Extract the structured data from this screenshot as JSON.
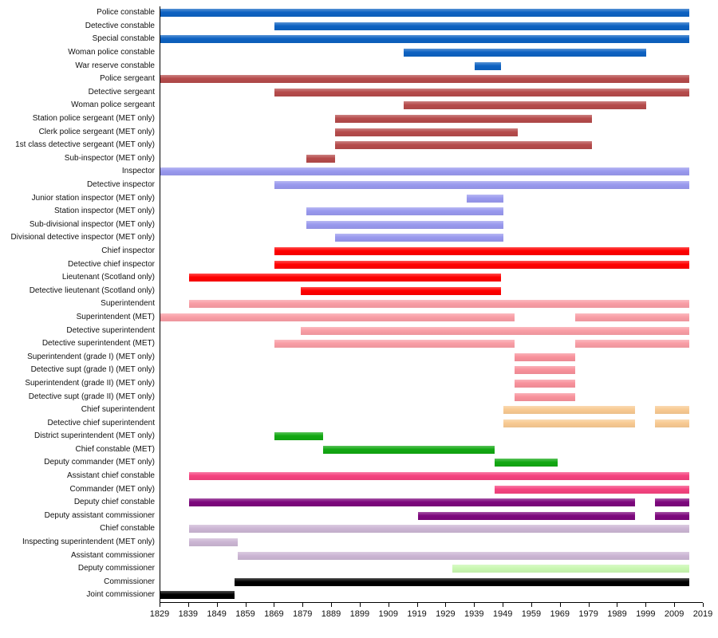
{
  "chart_data": {
    "type": "bar",
    "subtype": "timeline",
    "title": "",
    "xlabel": "",
    "ylabel": "",
    "x_min": 1829,
    "x_max": 2019,
    "grid": false,
    "legend": "none",
    "x_ticks": [
      1829,
      1839,
      1849,
      1859,
      1869,
      1879,
      1889,
      1899,
      1909,
      1919,
      1929,
      1939,
      1949,
      1959,
      1969,
      1979,
      1989,
      1999,
      2009,
      2019
    ],
    "colors": {
      "constable_blue": "#0d62c2",
      "sergeant_darkred": "#b54b4b",
      "inspector_periwinkle": "#9999ee",
      "chief_inspector_red": "#ff0000",
      "superintendent_pink": "#f99da5",
      "grade_salmon": "#f8919b",
      "chief_superintendent_orange": "#f8ca92",
      "met_green": "#12a812",
      "acc_hotpink": "#f5437f",
      "dcc_purple": "#7d077d",
      "cc_thistle": "#ccb6d4",
      "deputy_commissioner_palegreen": "#c9f8b1",
      "commissioner_black": "#000000"
    },
    "rows": [
      {
        "label": "Police constable",
        "color": "#0d62c2",
        "segments": [
          [
            1829,
            2014
          ]
        ]
      },
      {
        "label": "Detective constable",
        "color": "#0d62c2",
        "segments": [
          [
            1869,
            2014
          ]
        ]
      },
      {
        "label": "Special constable",
        "color": "#0d62c2",
        "segments": [
          [
            1829,
            2014
          ]
        ]
      },
      {
        "label": "Woman police constable",
        "color": "#0d62c2",
        "segments": [
          [
            1914,
            1999
          ]
        ]
      },
      {
        "label": "War reserve constable",
        "color": "#0d62c2",
        "segments": [
          [
            1939,
            1948
          ]
        ]
      },
      {
        "label": "Police sergeant",
        "color": "#b54b4b",
        "segments": [
          [
            1829,
            2014
          ]
        ]
      },
      {
        "label": "Detective sergeant",
        "color": "#b54b4b",
        "segments": [
          [
            1869,
            2014
          ]
        ]
      },
      {
        "label": "Woman police sergeant",
        "color": "#b54b4b",
        "segments": [
          [
            1914,
            1999
          ]
        ]
      },
      {
        "label": "Station police sergeant (MET only)",
        "color": "#b54b4b",
        "segments": [
          [
            1890,
            1980
          ]
        ]
      },
      {
        "label": "Clerk police sergeant (MET only)",
        "color": "#b54b4b",
        "segments": [
          [
            1890,
            1954
          ]
        ]
      },
      {
        "label": "1st class detective sergeant (MET only)",
        "color": "#b54b4b",
        "segments": [
          [
            1890,
            1980
          ]
        ]
      },
      {
        "label": "Sub-inspector (MET only)",
        "color": "#b54b4b",
        "segments": [
          [
            1880,
            1890
          ]
        ]
      },
      {
        "label": "Inspector",
        "color": "#9999ee",
        "segments": [
          [
            1829,
            2014
          ]
        ]
      },
      {
        "label": "Detective inspector",
        "color": "#9999ee",
        "segments": [
          [
            1869,
            2014
          ]
        ]
      },
      {
        "label": "Junior station inspector (MET only)",
        "color": "#9999ee",
        "segments": [
          [
            1936,
            1949
          ]
        ]
      },
      {
        "label": "Station inspector (MET only)",
        "color": "#9999ee",
        "segments": [
          [
            1880,
            1949
          ]
        ]
      },
      {
        "label": "Sub-divisional inspector (MET only)",
        "color": "#9999ee",
        "segments": [
          [
            1880,
            1949
          ]
        ]
      },
      {
        "label": "Divisional detective inspector (MET only)",
        "color": "#9999ee",
        "segments": [
          [
            1890,
            1949
          ]
        ]
      },
      {
        "label": "Chief inspector",
        "color": "#ff0000",
        "segments": [
          [
            1869,
            2014
          ]
        ]
      },
      {
        "label": "Detective chief inspector",
        "color": "#ff0000",
        "segments": [
          [
            1869,
            2014
          ]
        ]
      },
      {
        "label": "Lieutenant (Scotland only)",
        "color": "#ff0000",
        "segments": [
          [
            1839,
            1948
          ]
        ]
      },
      {
        "label": "Detective lieutenant (Scotland only)",
        "color": "#ff0000",
        "segments": [
          [
            1878,
            1948
          ]
        ]
      },
      {
        "label": "Superintendent",
        "color": "#f99da5",
        "segments": [
          [
            1839,
            2014
          ]
        ]
      },
      {
        "label": "Superintendent (MET)",
        "color": "#f99da5",
        "segments": [
          [
            1829,
            1953
          ],
          [
            1974,
            2014
          ]
        ]
      },
      {
        "label": "Detective superintendent",
        "color": "#f99da5",
        "segments": [
          [
            1878,
            2014
          ]
        ]
      },
      {
        "label": "Detective superintendent (MET)",
        "color": "#f99da5",
        "segments": [
          [
            1869,
            1953
          ],
          [
            1974,
            2014
          ]
        ]
      },
      {
        "label": "Superintendent (grade I) (MET only)",
        "color": "#f8919b",
        "segments": [
          [
            1953,
            1974
          ]
        ]
      },
      {
        "label": "Detective supt (grade I) (MET only)",
        "color": "#f8919b",
        "segments": [
          [
            1953,
            1974
          ]
        ]
      },
      {
        "label": "Superintendent (grade II) (MET only)",
        "color": "#f8919b",
        "segments": [
          [
            1953,
            1974
          ]
        ]
      },
      {
        "label": "Detective supt (grade II) (MET only)",
        "color": "#f8919b",
        "segments": [
          [
            1953,
            1974
          ]
        ]
      },
      {
        "label": "Chief superintendent",
        "color": "#f8ca92",
        "segments": [
          [
            1949,
            1995
          ],
          [
            2002,
            2014
          ]
        ]
      },
      {
        "label": "Detective chief superintendent",
        "color": "#f8ca92",
        "segments": [
          [
            1949,
            1995
          ],
          [
            2002,
            2014
          ]
        ]
      },
      {
        "label": "District superintendent (MET only)",
        "color": "#12a812",
        "segments": [
          [
            1869,
            1886
          ]
        ]
      },
      {
        "label": "Chief constable (MET)",
        "color": "#12a812",
        "segments": [
          [
            1886,
            1946
          ]
        ]
      },
      {
        "label": "Deputy commander (MET only)",
        "color": "#12a812",
        "segments": [
          [
            1946,
            1968
          ]
        ]
      },
      {
        "label": "Assistant chief constable",
        "color": "#f5437f",
        "segments": [
          [
            1839,
            2014
          ]
        ]
      },
      {
        "label": "Commander (MET only)",
        "color": "#f5437f",
        "segments": [
          [
            1946,
            2014
          ]
        ]
      },
      {
        "label": "Deputy chief constable",
        "color": "#7d077d",
        "segments": [
          [
            1839,
            1995
          ],
          [
            2002,
            2014
          ]
        ]
      },
      {
        "label": "Deputy assistant commissioner",
        "color": "#7d077d",
        "segments": [
          [
            1919,
            1995
          ],
          [
            2002,
            2014
          ]
        ]
      },
      {
        "label": "Chief constable",
        "color": "#ccb6d4",
        "segments": [
          [
            1839,
            2014
          ]
        ]
      },
      {
        "label": "Inspecting superintendent (MET only)",
        "color": "#ccb6d4",
        "segments": [
          [
            1839,
            1856
          ]
        ]
      },
      {
        "label": "Assistant commissioner",
        "color": "#ccb6d4",
        "segments": [
          [
            1856,
            2014
          ]
        ]
      },
      {
        "label": "Deputy commissioner",
        "color": "#c9f8b1",
        "segments": [
          [
            1931,
            2014
          ]
        ]
      },
      {
        "label": "Commissioner",
        "color": "#000000",
        "segments": [
          [
            1855,
            2014
          ]
        ]
      },
      {
        "label": "Joint commissioner",
        "color": "#000000",
        "segments": [
          [
            1829,
            1855
          ]
        ]
      }
    ]
  }
}
